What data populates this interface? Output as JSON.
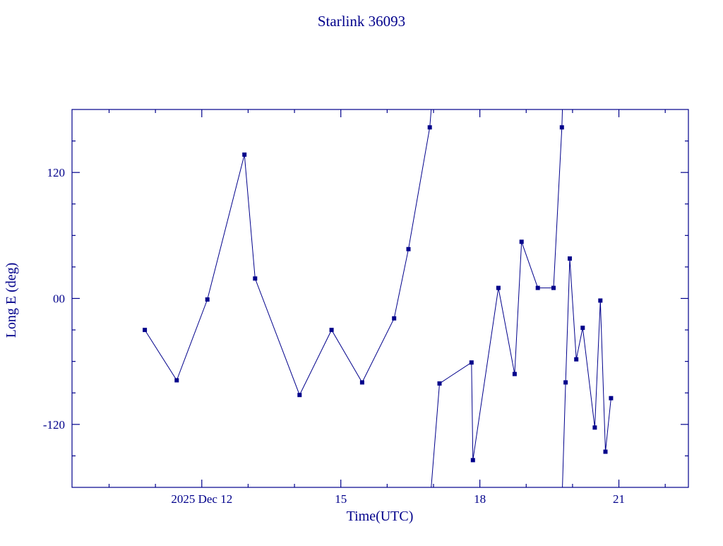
{
  "window": {
    "background": "#ffffff",
    "accent_color": "#00008b"
  },
  "chart_data": {
    "type": "line",
    "title": "Starlink 36093",
    "xlabel": "Time(UTC)",
    "ylabel": "Long E (deg)",
    "x_unit": "day of December 2025, UTC",
    "xlim": [
      9.2,
      22.5
    ],
    "ylim": [
      -180,
      180
    ],
    "grid": false,
    "legend": "none",
    "line_color": "#00008b",
    "marker": "small-square",
    "wrap_degrees": 360,
    "x_major_ticks": [
      {
        "value": 12,
        "label": "2025 Dec 12"
      },
      {
        "value": 15,
        "label": "15"
      },
      {
        "value": 18,
        "label": "18"
      },
      {
        "value": 21,
        "label": "21"
      }
    ],
    "x_minor_step": 1,
    "y_major_ticks": [
      {
        "value": 120,
        "label": "120"
      },
      {
        "value": 0,
        "label": "00"
      },
      {
        "value": -120,
        "label": "-120"
      }
    ],
    "y_minor_step": 30,
    "points": [
      [
        10.77,
        -30
      ],
      [
        11.46,
        -78
      ],
      [
        12.12,
        -1
      ],
      [
        12.92,
        137
      ],
      [
        13.15,
        19
      ],
      [
        14.11,
        -92
      ],
      [
        14.8,
        -30
      ],
      [
        15.46,
        -80
      ],
      [
        16.15,
        -19
      ],
      [
        16.46,
        47
      ],
      [
        16.92,
        163
      ],
      [
        17.13,
        -81
      ],
      [
        17.82,
        -61
      ],
      [
        17.85,
        -154
      ],
      [
        18.4,
        10
      ],
      [
        18.75,
        -72
      ],
      [
        18.9,
        54
      ],
      [
        19.25,
        10
      ],
      [
        19.59,
        10
      ],
      [
        19.77,
        163
      ],
      [
        19.85,
        -80
      ],
      [
        19.94,
        38
      ],
      [
        20.08,
        -58
      ],
      [
        20.22,
        -28
      ],
      [
        20.48,
        -123
      ],
      [
        20.6,
        -2
      ],
      [
        20.71,
        -146
      ],
      [
        20.83,
        -95
      ]
    ]
  }
}
